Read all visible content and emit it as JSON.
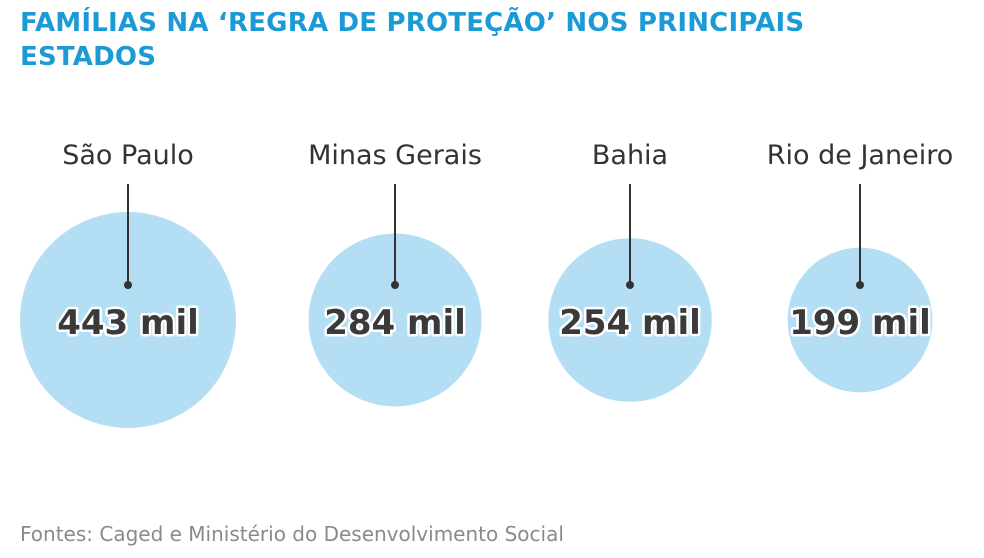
{
  "header": {
    "title": "FAMÍLIAS NA ‘REGRA DE PROTEÇÃO’ NOS PRINCIPAIS ESTADOS"
  },
  "footer": {
    "source": "Fontes: Caged e Ministério do Desenvolvimento Social"
  },
  "colors": {
    "title": "#1c9ad6",
    "bubble": "#b3def3",
    "leader": "#333333",
    "value_text": "#3a3a3a"
  },
  "chart_data": {
    "type": "bubble",
    "unit": "mil",
    "categories": [
      "São Paulo",
      "Minas Gerais",
      "Bahia",
      "Rio de Janeiro"
    ],
    "values": [
      443,
      284,
      254,
      199
    ],
    "value_labels": [
      "443 mil",
      "284 mil",
      "254 mil",
      "199 mil"
    ],
    "title": "FAMÍLIAS NA ‘REGRA DE PROTEÇÃO’ NOS PRINCIPAIS ESTADOS"
  }
}
